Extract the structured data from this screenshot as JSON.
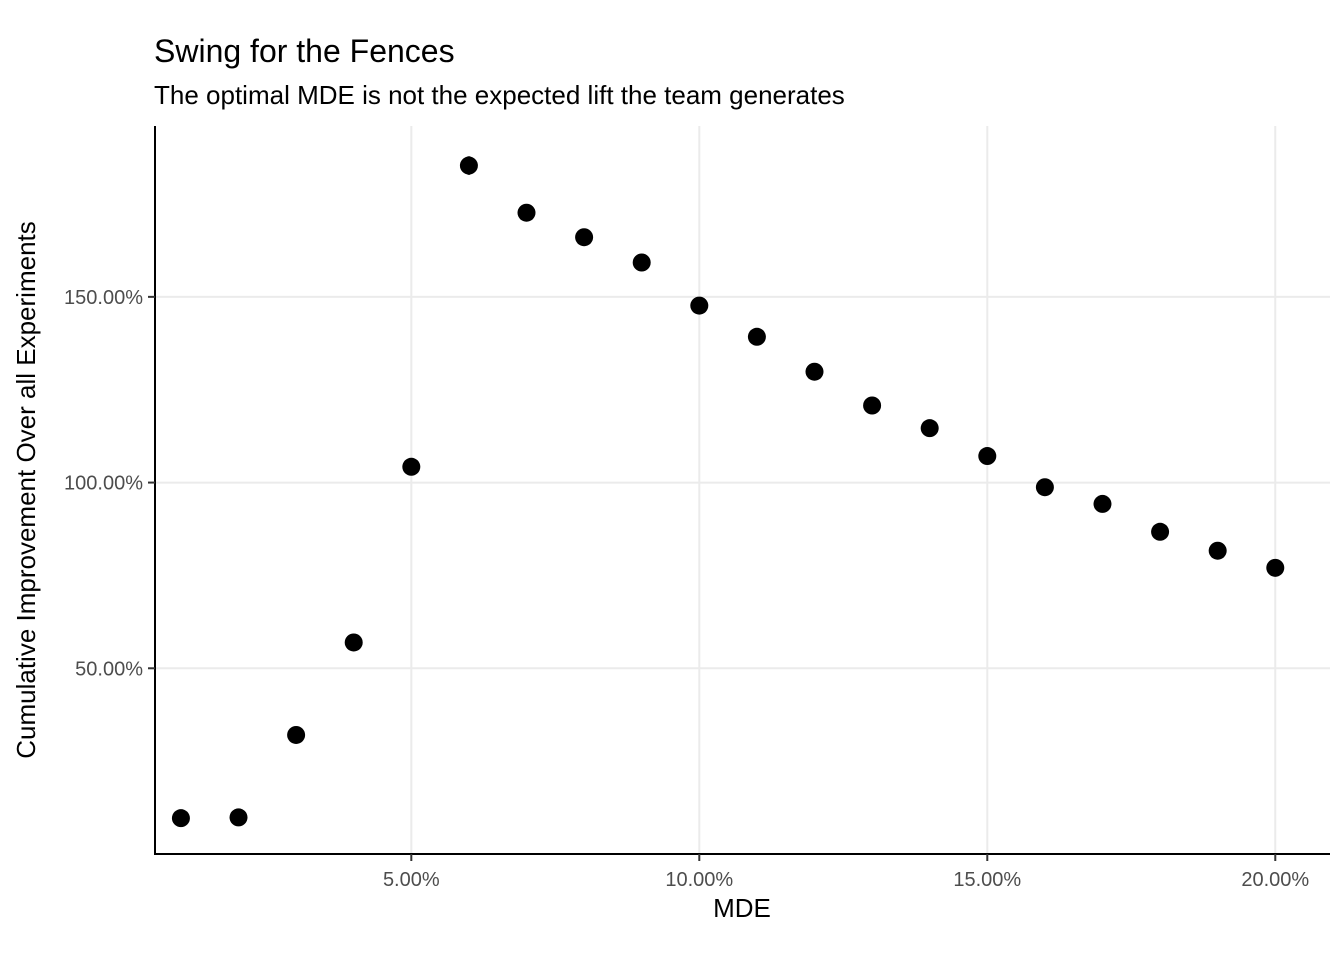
{
  "chart_data": {
    "type": "scatter",
    "title": "Swing for the Fences",
    "subtitle": "The optimal MDE is not the expected lift the team generates",
    "xlabel": "MDE",
    "ylabel": "Cumulative Improvement Over all Experiments",
    "xlim": [
      0.0055,
      0.2095
    ],
    "ylim": [
      0.0,
      1.96
    ],
    "x_ticks": [
      0.05,
      0.1,
      0.15,
      0.2
    ],
    "x_tick_labels": [
      "5.00%",
      "10.00%",
      "15.00%",
      "20.00%"
    ],
    "y_ticks": [
      0.5,
      1.0,
      1.5
    ],
    "y_tick_labels": [
      "50.00%",
      "100.00%",
      "150.00%"
    ],
    "grid": true,
    "legend": "none",
    "series": [
      {
        "x": [
          0.01,
          0.02,
          0.03,
          0.04,
          0.05,
          0.06,
          0.07,
          0.08,
          0.09,
          0.1,
          0.11,
          0.12,
          0.13,
          0.14,
          0.15,
          0.16,
          0.17,
          0.18,
          0.19,
          0.2
        ],
        "y": [
          0.0965,
          0.0985,
          0.3205,
          0.5695,
          1.0425,
          1.8535,
          1.7265,
          1.6605,
          1.5925,
          1.4765,
          1.3925,
          1.2985,
          1.2075,
          1.1465,
          1.0715,
          0.9875,
          0.9425,
          0.8675,
          0.8165,
          0.7705
        ],
        "err": [
          0.003,
          0.003,
          0.004,
          0.005,
          0.006,
          0.025,
          0.022,
          0.02,
          0.015,
          0.012,
          0.01,
          0.008,
          0.006,
          0.005,
          0.004,
          0.004,
          0.004,
          0.003,
          0.003,
          0.003
        ]
      }
    ]
  }
}
